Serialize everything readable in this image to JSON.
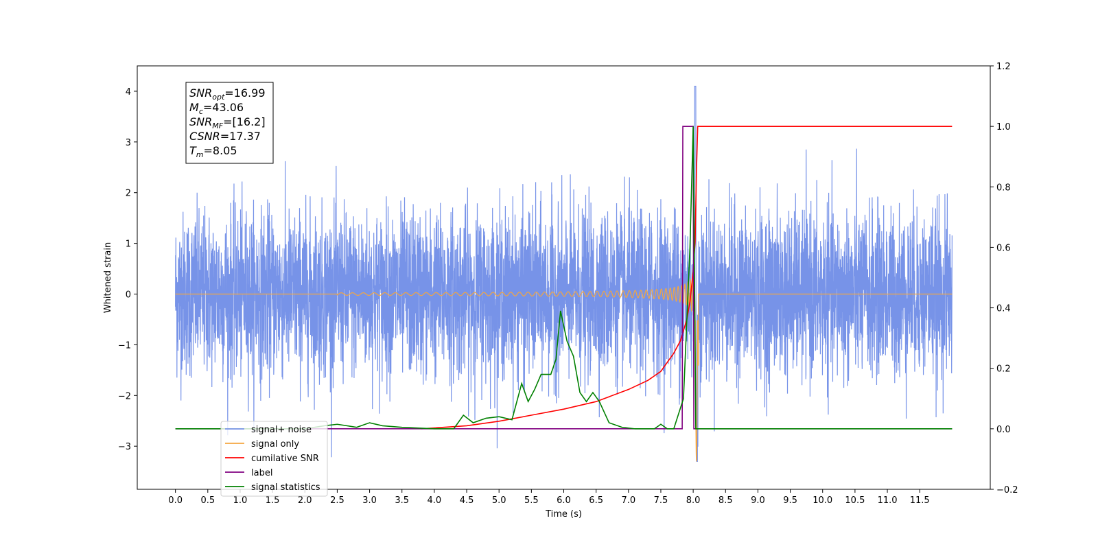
{
  "chart_data": {
    "type": "line",
    "title": "",
    "xlabel": "Time (s)",
    "ylabel": "Whitened strain",
    "xlim": [
      -0.59,
      12.59
    ],
    "ylim": [
      -3.85,
      4.5
    ],
    "y2lim": [
      -0.2,
      1.2
    ],
    "x_ticks": [
      "0.0",
      "0.5",
      "1.0",
      "1.5",
      "2.0",
      "2.5",
      "3.0",
      "3.5",
      "4.0",
      "4.5",
      "5.0",
      "5.5",
      "6.0",
      "6.5",
      "7.0",
      "7.5",
      "8.0",
      "8.5",
      "9.0",
      "9.5",
      "10.0",
      "10.5",
      "11.0",
      "11.5"
    ],
    "y_ticks": [
      "4",
      "3",
      "2",
      "1",
      "0",
      "−1",
      "−2",
      "−3"
    ],
    "y2_ticks": [
      "1.2",
      "1.0",
      "0.8",
      "0.6",
      "0.4",
      "0.2",
      "0.0",
      "−0.2"
    ],
    "grid": false,
    "legend_position": "lower-left",
    "annotation": {
      "lines": [
        {
          "main": "SNR",
          "sub": "opt",
          "rest": "=16.99"
        },
        {
          "main": "M",
          "sub": "c",
          "rest": "=43.06"
        },
        {
          "main": "SNR",
          "sub": "MF",
          "rest": "=[16.2]"
        },
        {
          "main": "CSNR",
          "sub": "",
          "rest": "=17.37"
        },
        {
          "main": "T",
          "sub": "m",
          "rest": "=8.05"
        }
      ]
    },
    "noise": {
      "t_start": 0.0,
      "t_end": 12.0,
      "approx_max": 4.1,
      "approx_min": -3.5
    },
    "chirp": {
      "t_start": 0.0,
      "t_merger": 8.05,
      "peak_amplitude": 1.5,
      "min_value": -3.3
    },
    "series": [
      {
        "name": "signal+ noise",
        "color": "#7793e8",
        "axis": "left",
        "description_points": {
          "x": [
            0.0,
            12.0
          ],
          "y": [
            0.0,
            0.0
          ]
        }
      },
      {
        "name": "signal only",
        "color": "#f4a640",
        "axis": "left",
        "description_points": {
          "x": [
            0.0,
            7.5,
            8.05,
            12.0
          ],
          "y": [
            0.0,
            0.0,
            0.0,
            0.0
          ]
        }
      },
      {
        "name": "cumilative SNR",
        "color": "#ff0000",
        "axis": "right",
        "x": [
          3.8,
          4.5,
          5.0,
          5.5,
          6.0,
          6.5,
          7.0,
          7.3,
          7.5,
          7.7,
          7.8,
          7.9,
          7.95,
          8.0,
          8.03,
          8.05,
          8.07,
          12.0
        ],
        "y": [
          0.0,
          0.01,
          0.025,
          0.045,
          0.065,
          0.09,
          0.13,
          0.16,
          0.19,
          0.25,
          0.29,
          0.36,
          0.42,
          0.52,
          0.62,
          0.85,
          1.0,
          1.0
        ]
      },
      {
        "name": "label",
        "color": "#800080",
        "axis": "right",
        "x": [
          0.0,
          7.83,
          7.84,
          8.0,
          8.01,
          8.05,
          12.0
        ],
        "y": [
          0.0,
          0.0,
          1.0,
          1.0,
          0.0,
          0.0,
          0.0
        ]
      },
      {
        "name": "signal statistics",
        "color": "#008000",
        "axis": "right",
        "x": [
          0.0,
          2.0,
          2.3,
          2.5,
          2.8,
          3.0,
          3.2,
          3.5,
          4.0,
          4.3,
          4.45,
          4.6,
          4.8,
          5.0,
          5.2,
          5.35,
          5.45,
          5.55,
          5.65,
          5.8,
          5.88,
          5.95,
          6.05,
          6.15,
          6.25,
          6.35,
          6.45,
          6.55,
          6.7,
          6.9,
          7.1,
          7.4,
          7.5,
          7.6,
          7.7,
          7.85,
          7.95,
          8.0,
          8.04,
          8.06,
          12.0
        ],
        "y": [
          0.0,
          0.0,
          0.01,
          0.015,
          0.005,
          0.02,
          0.01,
          0.005,
          0.0,
          0.0,
          0.045,
          0.02,
          0.035,
          0.04,
          0.03,
          0.15,
          0.09,
          0.13,
          0.18,
          0.18,
          0.23,
          0.39,
          0.29,
          0.24,
          0.12,
          0.09,
          0.12,
          0.09,
          0.02,
          0.005,
          0.0,
          0.0,
          0.015,
          0.0,
          0.0,
          0.1,
          0.6,
          1.0,
          0.0,
          0.0,
          0.0
        ]
      }
    ]
  }
}
